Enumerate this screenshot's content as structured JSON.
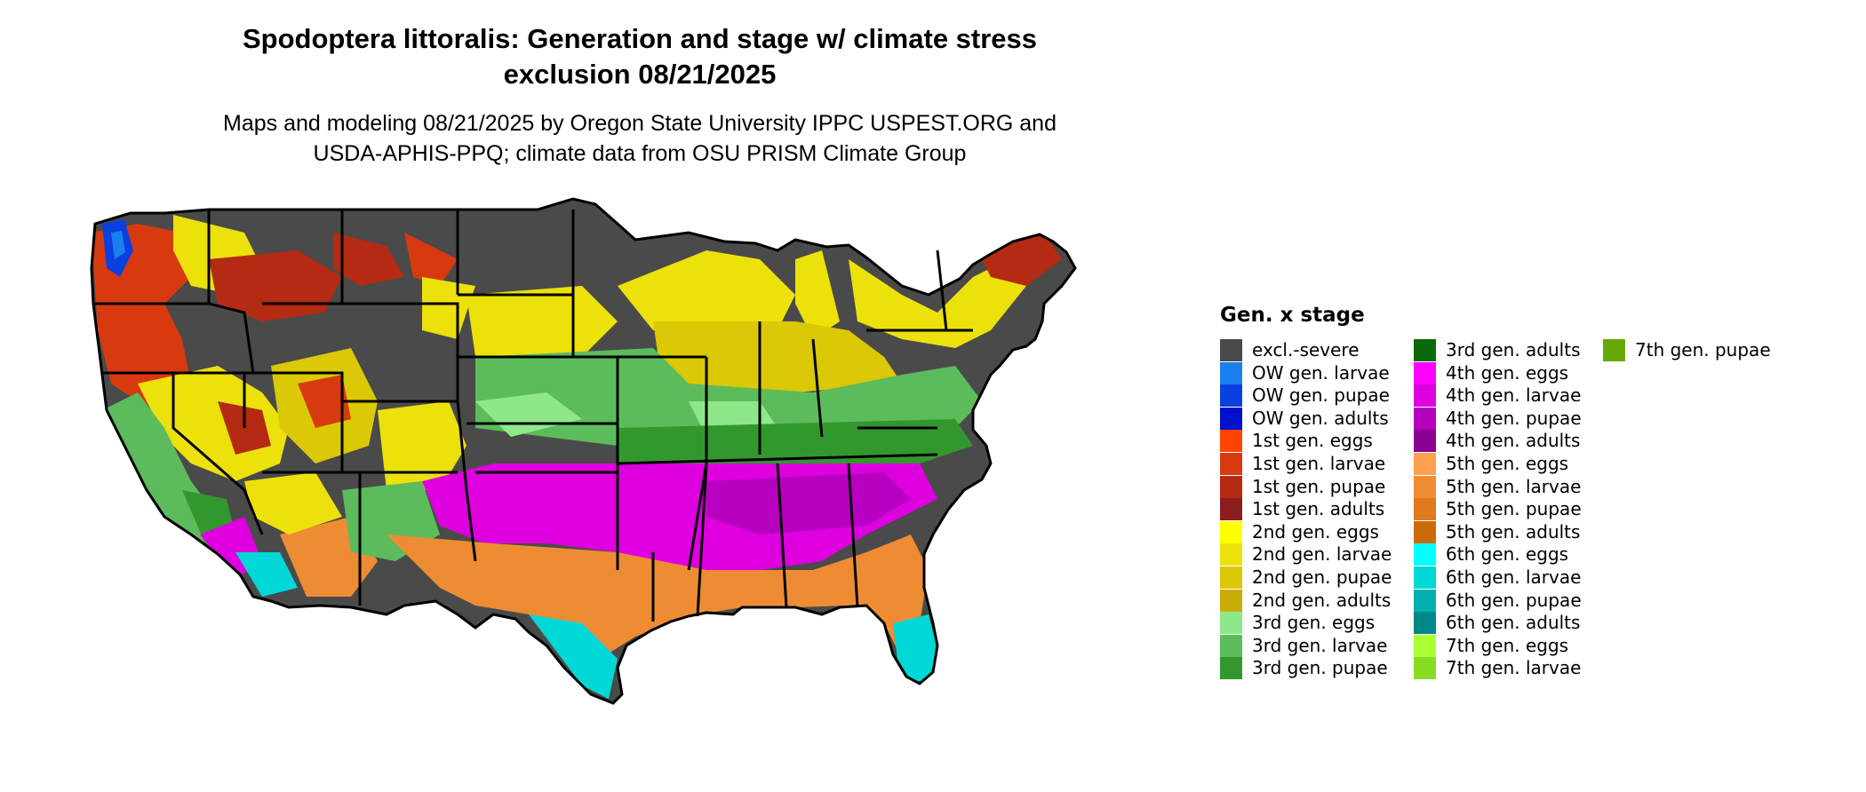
{
  "title_line1": "Spodoptera littoralis: Generation and stage w/ climate stress",
  "title_line2": "exclusion 08/21/2025",
  "subtitle_line1": "Maps and modeling 08/21/2025 by Oregon State University IPPC USPEST.ORG and",
  "subtitle_line2": "USDA-APHIS-PPQ; climate data from OSU PRISM Climate Group",
  "legend": {
    "title": "Gen. x stage",
    "items": [
      {
        "label": "excl.-severe",
        "color": "#4a4a4a"
      },
      {
        "label": "OW gen. larvae",
        "color": "#1a7fef"
      },
      {
        "label": "OW gen. pupae",
        "color": "#0a40e0"
      },
      {
        "label": "OW gen. adults",
        "color": "#0010cc"
      },
      {
        "label": "1st gen. eggs",
        "color": "#ff4400"
      },
      {
        "label": "1st gen. larvae",
        "color": "#d83a10"
      },
      {
        "label": "1st gen. pupae",
        "color": "#b42a12"
      },
      {
        "label": "1st gen. adults",
        "color": "#8a1e1e"
      },
      {
        "label": "2nd gen. eggs",
        "color": "#ffff00"
      },
      {
        "label": "2nd gen. larvae",
        "color": "#ece10a"
      },
      {
        "label": "2nd gen. pupae",
        "color": "#dbc806"
      },
      {
        "label": "2nd gen. adults",
        "color": "#c9ab0a"
      },
      {
        "label": "3rd gen. eggs",
        "color": "#8ee88a"
      },
      {
        "label": "3rd gen. larvae",
        "color": "#5cbc5c"
      },
      {
        "label": "3rd gen. pupae",
        "color": "#32982e"
      },
      {
        "label": "3rd gen. adults",
        "color": "#0a6a0a"
      },
      {
        "label": "4th gen. eggs",
        "color": "#ff00ff"
      },
      {
        "label": "4th gen. larvae",
        "color": "#de00de"
      },
      {
        "label": "4th gen. pupae",
        "color": "#b800c0"
      },
      {
        "label": "4th gen. adults",
        "color": "#8a0090"
      },
      {
        "label": "5th gen. eggs",
        "color": "#ffa050"
      },
      {
        "label": "5th gen. larvae",
        "color": "#ee8c34"
      },
      {
        "label": "5th gen. pupae",
        "color": "#e07a1c"
      },
      {
        "label": "5th gen. adults",
        "color": "#cc6a0a"
      },
      {
        "label": "6th gen. eggs",
        "color": "#00ffff"
      },
      {
        "label": "6th gen. larvae",
        "color": "#00d8d8"
      },
      {
        "label": "6th gen. pupae",
        "color": "#00b0b0"
      },
      {
        "label": "6th gen. adults",
        "color": "#008888"
      },
      {
        "label": "7th gen. eggs",
        "color": "#aaff33"
      },
      {
        "label": "7th gen. larvae",
        "color": "#88dd22"
      },
      {
        "label": "7th gen. pupae",
        "color": "#66aa0a"
      }
    ]
  },
  "map": {
    "border_color": "#000000"
  }
}
